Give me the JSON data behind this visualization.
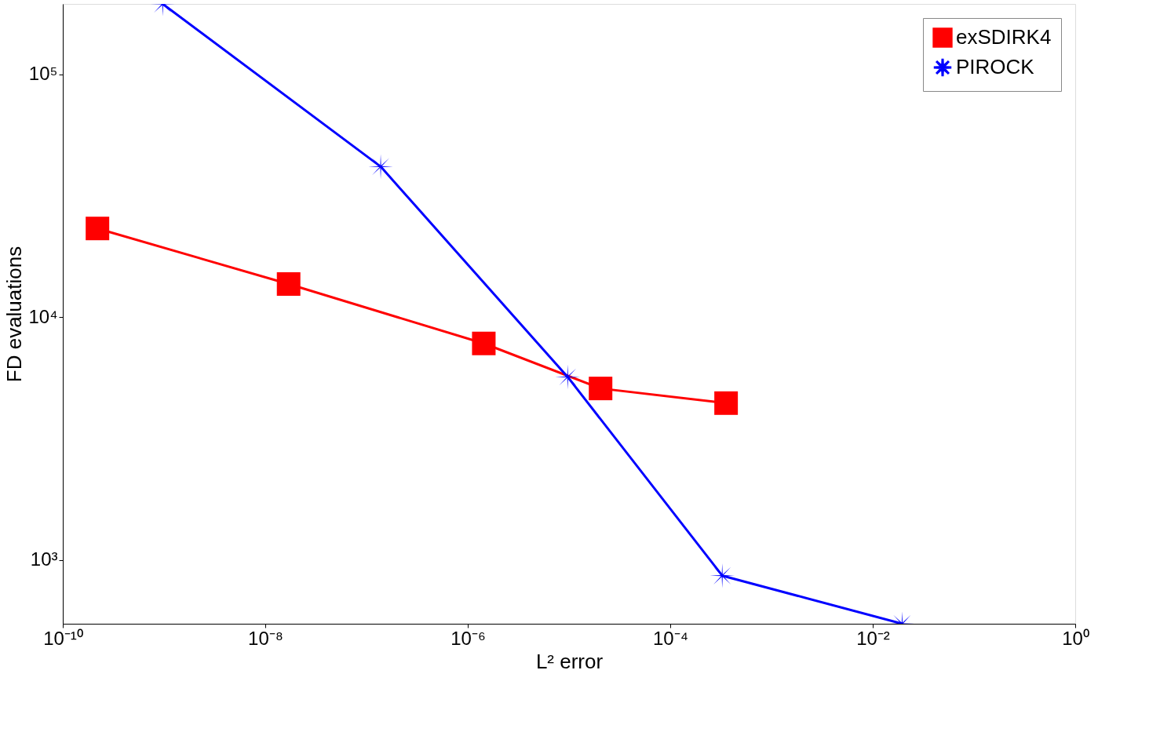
{
  "chart_data": {
    "type": "line",
    "xlabel": "L² error",
    "ylabel": "FD evaluations",
    "log": "xy",
    "grid": false,
    "legend": "top right",
    "xlim": [
      1e-10,
      1
    ],
    "ylim": [
      547,
      195000
    ],
    "xticks": [
      {
        "value": 1e-10,
        "label": "10⁻¹⁰"
      },
      {
        "value": 1e-08,
        "label": "10⁻⁸"
      },
      {
        "value": 1e-06,
        "label": "10⁻⁶"
      },
      {
        "value": 0.0001,
        "label": "10⁻⁴"
      },
      {
        "value": 0.01,
        "label": "10⁻²"
      },
      {
        "value": 1,
        "label": "10⁰"
      }
    ],
    "yticks": [
      {
        "value": 1000,
        "label": "10³"
      },
      {
        "value": 10000,
        "label": "10⁴"
      },
      {
        "value": 100000,
        "label": "10⁵"
      }
    ],
    "series": [
      {
        "name": "exSDIRK4",
        "color": "#ff0000",
        "marker": "square",
        "x": [
          2.2e-10,
          1.7e-08,
          1.44e-06,
          2.05e-05,
          0.000356
        ],
        "values": [
          23200,
          13700,
          7800,
          5090,
          4430
        ]
      },
      {
        "name": "PIROCK",
        "color": "#0000ff",
        "marker": "star",
        "x": [
          9.7e-10,
          1.38e-07,
          9.7e-06,
          0.000326,
          0.0195
        ],
        "values": [
          195000,
          41700,
          5680,
          863,
          547
        ]
      }
    ]
  }
}
